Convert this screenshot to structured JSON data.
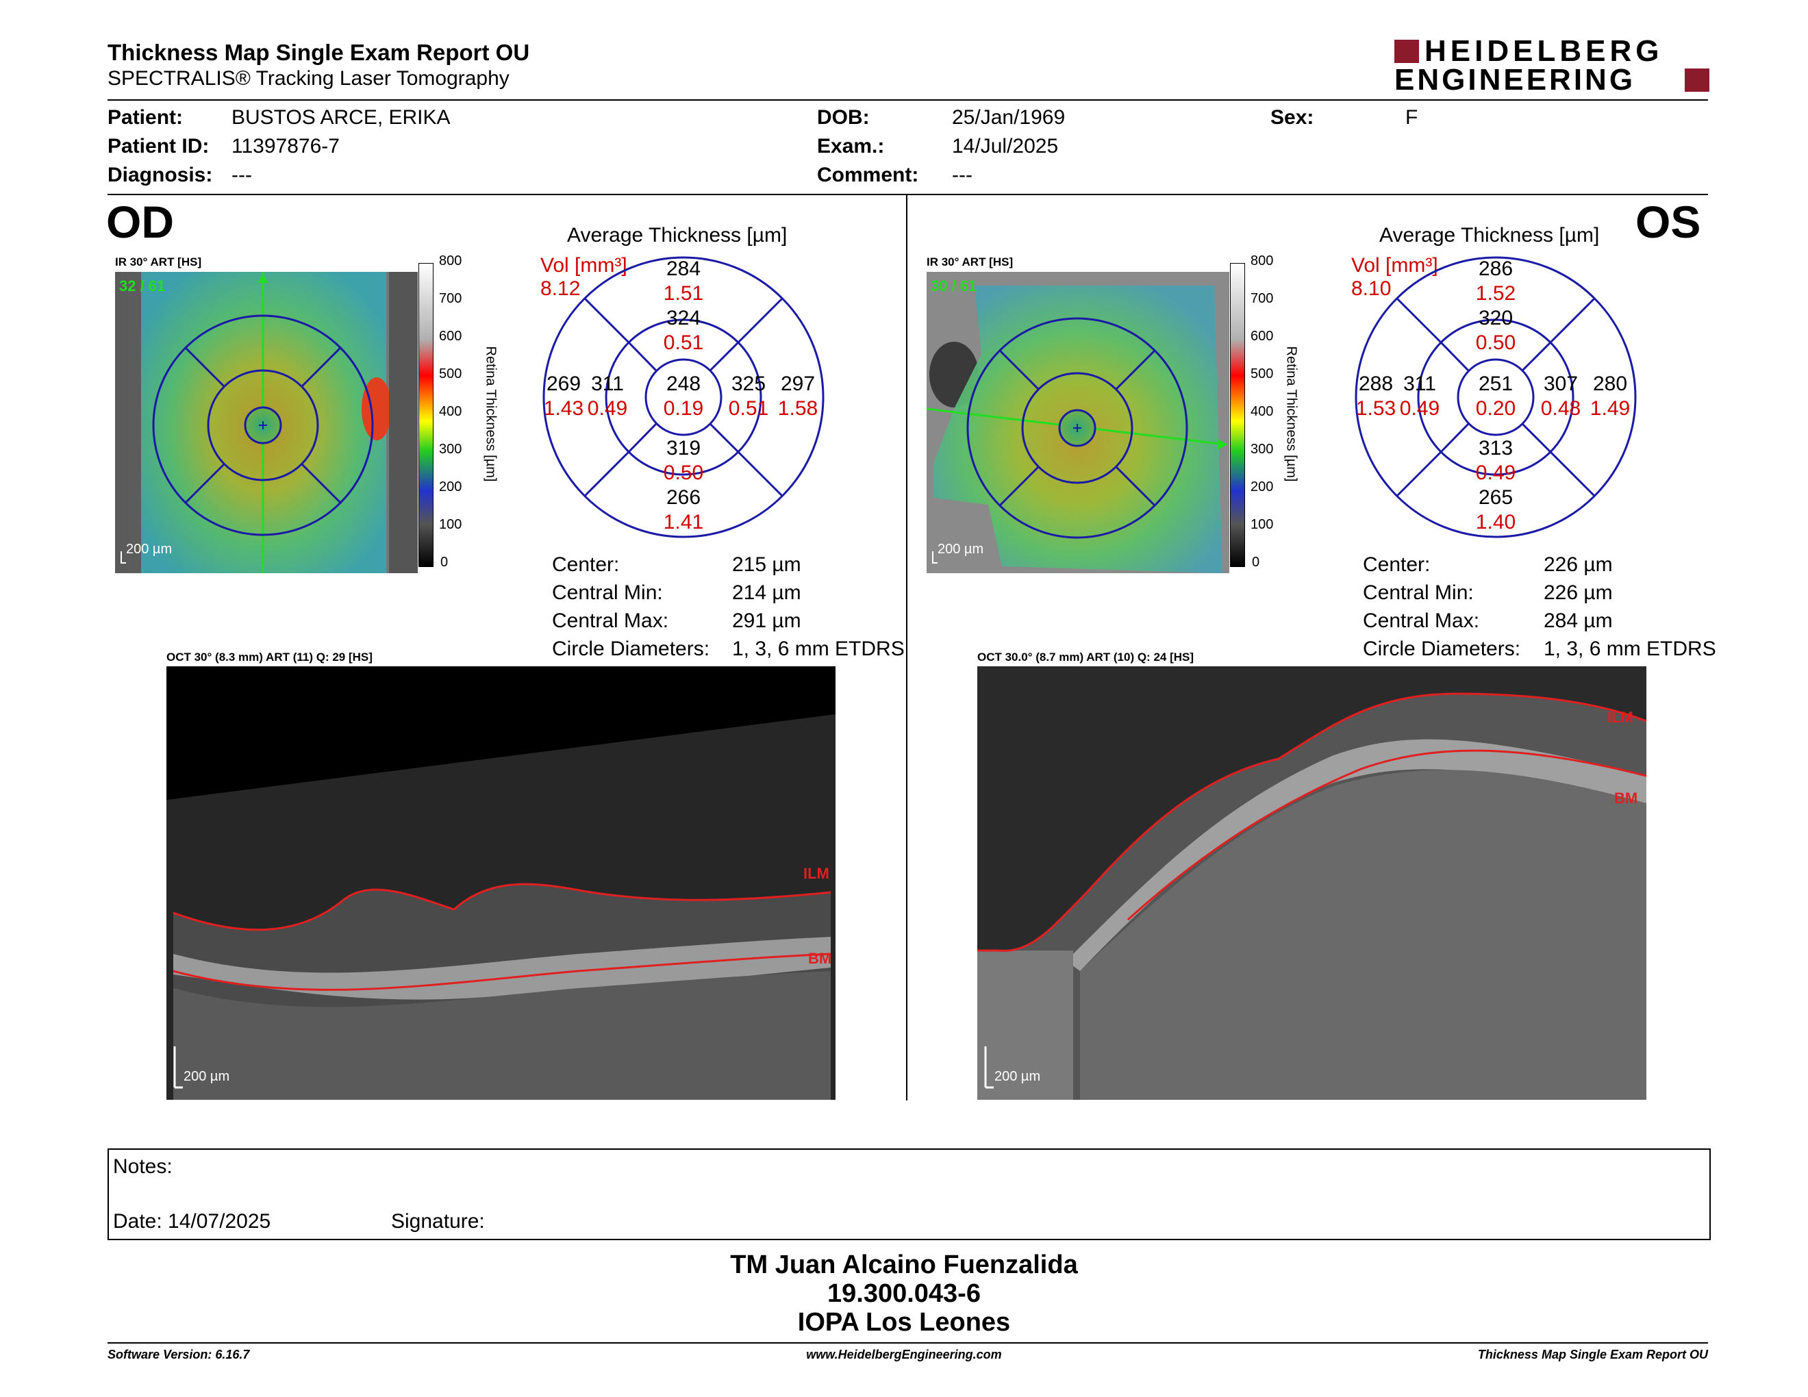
{
  "header": {
    "title": "Thickness Map Single Exam Report OU",
    "subtitle": "SPECTRALIS® Tracking Laser Tomography",
    "logo_line1": "HEIDELBERG",
    "logo_line2": "ENGINEERING"
  },
  "patient": {
    "patient_label": "Patient:",
    "patient_value": "BUSTOS ARCE, ERIKA",
    "id_label": "Patient ID:",
    "id_value": "11397876-7",
    "diagnosis_label": "Diagnosis:",
    "diagnosis_value": "---",
    "dob_label": "DOB:",
    "dob_value": "25/Jan/1969",
    "exam_label": "Exam.:",
    "exam_value": "14/Jul/2025",
    "comment_label": "Comment:",
    "comment_value": "---",
    "sex_label": "Sex:",
    "sex_value": "F"
  },
  "od": {
    "eye_label": "OD",
    "ir_caption": "IR 30° ART [HS]",
    "ir_quality": "32 / 61",
    "scale_label": "200 µm",
    "colorbar_ticks": [
      "800",
      "700",
      "600",
      "500",
      "400",
      "300",
      "200",
      "100",
      "0"
    ],
    "colorbar_label": "Retina Thickness [µm]",
    "avg_title": "Average Thickness [µm]",
    "vol_label": "Vol [mm³]",
    "vol_value": "8.12",
    "sectors": {
      "outer_sup": {
        "t": "284",
        "v": "1.51"
      },
      "inner_sup": {
        "t": "324",
        "v": "0.51"
      },
      "outer_nasal_left": {
        "t": "269",
        "v": "1.43"
      },
      "inner_left": {
        "t": "311",
        "v": "0.49"
      },
      "center": {
        "t": "248",
        "v": "0.19"
      },
      "inner_right": {
        "t": "325",
        "v": "0.51"
      },
      "outer_right": {
        "t": "297",
        "v": "1.58"
      },
      "inner_inf": {
        "t": "319",
        "v": "0.50"
      },
      "outer_inf": {
        "t": "266",
        "v": "1.41"
      }
    },
    "stats": {
      "center_label": "Center:",
      "center_value": "215 µm",
      "min_label": "Central Min:",
      "min_value": "214 µm",
      "max_label": "Central Max:",
      "max_value": "291 µm",
      "circ_label": "Circle Diameters:",
      "circ_value": "1, 3, 6 mm ETDRS"
    },
    "oct_caption": "OCT 30° (8.3 mm) ART (11) Q: 29 [HS]",
    "ilm": "ILM",
    "bm": "BM",
    "oct_scale": "200 µm"
  },
  "os": {
    "eye_label": "OS",
    "ir_caption": "IR 30° ART [HS]",
    "ir_quality": "30 / 61",
    "scale_label": "200 µm",
    "colorbar_ticks": [
      "800",
      "700",
      "600",
      "500",
      "400",
      "300",
      "200",
      "100",
      "0"
    ],
    "colorbar_label": "Retina Thickness [µm]",
    "avg_title": "Average Thickness [µm]",
    "vol_label": "Vol [mm³]",
    "vol_value": "8.10",
    "sectors": {
      "outer_sup": {
        "t": "286",
        "v": "1.52"
      },
      "inner_sup": {
        "t": "320",
        "v": "0.50"
      },
      "outer_nasal_left": {
        "t": "288",
        "v": "1.53"
      },
      "inner_left": {
        "t": "311",
        "v": "0.49"
      },
      "center": {
        "t": "251",
        "v": "0.20"
      },
      "inner_right": {
        "t": "307",
        "v": "0.48"
      },
      "outer_right": {
        "t": "280",
        "v": "1.49"
      },
      "inner_inf": {
        "t": "313",
        "v": "0.49"
      },
      "outer_inf": {
        "t": "265",
        "v": "1.40"
      }
    },
    "stats": {
      "center_label": "Center:",
      "center_value": "226 µm",
      "min_label": "Central Min:",
      "min_value": "226 µm",
      "max_label": "Central Max:",
      "max_value": "284 µm",
      "circ_label": "Circle Diameters:",
      "circ_value": "1, 3, 6 mm ETDRS"
    },
    "oct_caption": "OCT 30.0° (8.7 mm) ART (10) Q: 24 [HS]",
    "ilm": "ILM",
    "bm": "BM",
    "oct_scale": "200 µm"
  },
  "notes": {
    "notes_label": "Notes:",
    "date_label": "Date: 14/07/2025",
    "signature_label": "Signature:"
  },
  "signature": {
    "line1": "TM Juan Alcaino Fuenzalida",
    "line2": "19.300.043-6",
    "line3": "IOPA Los Leones"
  },
  "footer": {
    "software": "Software Version: 6.16.7",
    "website": "www.HeidelbergEngineering.com",
    "report": "Thickness Map Single Exam Report OU"
  },
  "colors": {
    "accent_red": "#d10000",
    "logo_red": "#8b1a2b",
    "grid_blue": "#1a1aa6",
    "seg_red": "#e02020"
  }
}
